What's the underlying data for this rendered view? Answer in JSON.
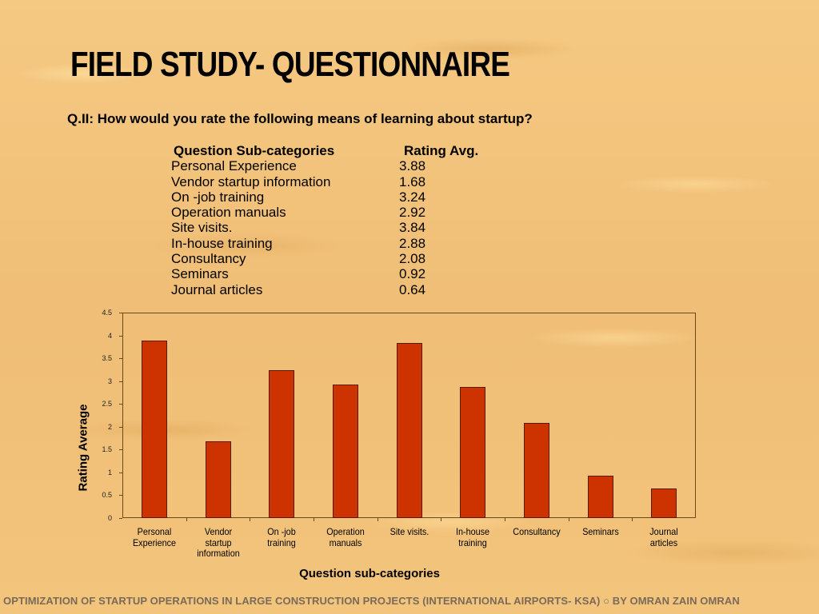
{
  "slide": {
    "title": "FIELD STUDY- QUESTIONNAIRE",
    "question": "Q.II: How would you rate the following means of learning about startup?",
    "footer": "OPTIMIZATION OF STARTUP OPERATIONS IN LARGE CONSTRUCTION  PROJECTS (INTERNATIONAL AIRPORTS- KSA) ○ BY OMRAN ZAIN OMRAN"
  },
  "table": {
    "headers": {
      "category": "Question Sub-categories",
      "value": "Rating Avg."
    },
    "rows": [
      {
        "category": "Personal Experience",
        "value": "3.88"
      },
      {
        "category": "Vendor startup information",
        "value": "1.68"
      },
      {
        "category": "On -job training",
        "value": "3.24"
      },
      {
        "category": "Operation manuals",
        "value": "2.92"
      },
      {
        "category": "Site visits.",
        "value": "3.84"
      },
      {
        "category": "In-house training",
        "value": "2.88"
      },
      {
        "category": "Consultancy",
        "value": "2.08"
      },
      {
        "category": "Seminars",
        "value": "0.92"
      },
      {
        "category": "Journal articles",
        "value": "0.64"
      }
    ]
  },
  "colors": {
    "bar": "#cc3300",
    "bar_border": "#5a1a00",
    "background": "#f2c27a",
    "footer_text": "#7a6a5a"
  },
  "chart_data": {
    "type": "bar",
    "title": "",
    "xlabel": "Question sub-categories",
    "ylabel": "Rating Average",
    "ylim": [
      0,
      4.5
    ],
    "yticks": [
      "0",
      "0.5",
      "1",
      "1.5",
      "2",
      "2.5",
      "3",
      "3.5",
      "4",
      "4.5"
    ],
    "categories": [
      "Personal Experience",
      "Vendor startup information",
      "On -job training",
      "Operation manuals",
      "Site visits.",
      "In-house training",
      "Consultancy",
      "Seminars",
      "Journal articles"
    ],
    "category_labels": [
      "Personal\nExperience",
      "Vendor\nstartup\ninformation",
      "On -job\ntraining",
      "Operation\nmanuals",
      "Site visits.",
      "In-house\ntraining",
      "Consultancy",
      "Seminars",
      "Journal\narticles"
    ],
    "values": [
      3.88,
      1.68,
      3.24,
      2.92,
      3.84,
      2.88,
      2.08,
      0.92,
      0.64
    ],
    "grid": false,
    "legend": "none"
  }
}
